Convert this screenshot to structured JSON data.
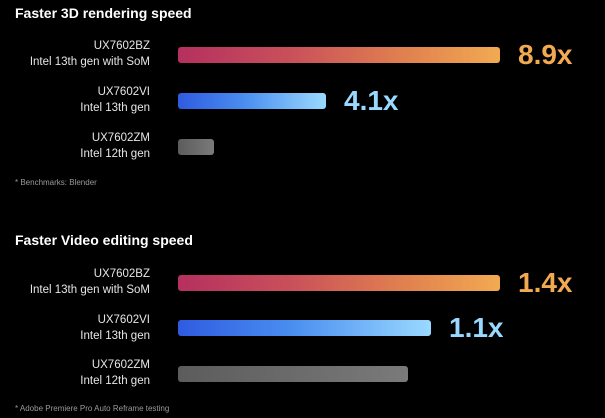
{
  "chart_data": [
    {
      "type": "bar",
      "orientation": "horizontal",
      "title": "Faster 3D rendering speed",
      "footnote": "* Benchmarks: Blender",
      "categories": [
        [
          "UX7602BZ",
          "Intel 13th gen with SoM"
        ],
        [
          "UX7602VI",
          "Intel 13th gen"
        ],
        [
          "UX7602ZM",
          "Intel 12th gen"
        ]
      ],
      "values": [
        8.9,
        4.1,
        1.0
      ],
      "value_labels": [
        "8.9x",
        "4.1x",
        ""
      ],
      "xlim": [
        0,
        8.9
      ],
      "colors": [
        "#f2aa52",
        "#9ad9ff",
        "#7a7a7a"
      ],
      "grid": false,
      "legend": "none"
    },
    {
      "type": "bar",
      "orientation": "horizontal",
      "title": "Faster Video editing speed",
      "footnote": "* Adobe Premiere Pro Auto Reframe testing",
      "categories": [
        [
          "UX7602BZ",
          "Intel 13th gen with SoM"
        ],
        [
          "UX7602VI",
          "Intel 13th gen"
        ],
        [
          "UX7602ZM",
          "Intel 12th gen"
        ]
      ],
      "values": [
        1.4,
        1.1,
        1.0
      ],
      "value_labels": [
        "1.4x",
        "1.1x",
        ""
      ],
      "xlim": [
        0,
        1.4
      ],
      "colors": [
        "#f2aa52",
        "#9ad9ff",
        "#7a7a7a"
      ],
      "grid": false,
      "legend": "none"
    }
  ]
}
